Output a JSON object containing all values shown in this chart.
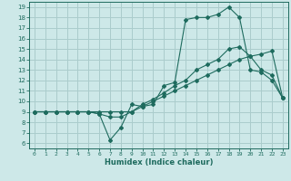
{
  "xlabel": "Humidex (Indice chaleur)",
  "bg_color": "#cde8e8",
  "grid_color": "#aacccc",
  "line_color": "#1e6b5e",
  "xlim": [
    -0.5,
    23.5
  ],
  "ylim": [
    5.5,
    19.5
  ],
  "xticks": [
    0,
    1,
    2,
    3,
    4,
    5,
    6,
    7,
    8,
    9,
    10,
    11,
    12,
    13,
    14,
    15,
    16,
    17,
    18,
    19,
    20,
    21,
    22,
    23
  ],
  "yticks": [
    6,
    7,
    8,
    9,
    10,
    11,
    12,
    13,
    14,
    15,
    16,
    17,
    18,
    19
  ],
  "line1_x": [
    0,
    1,
    2,
    3,
    4,
    5,
    6,
    7,
    8,
    9,
    10,
    11,
    12,
    13,
    14,
    15,
    16,
    17,
    18,
    19,
    20,
    21,
    22,
    23
  ],
  "line1_y": [
    9.0,
    9.0,
    9.0,
    9.0,
    9.0,
    9.0,
    8.8,
    6.3,
    7.5,
    9.7,
    9.5,
    9.7,
    11.5,
    11.8,
    17.8,
    18.0,
    18.0,
    18.3,
    19.0,
    18.0,
    13.0,
    12.8,
    12.0,
    10.3
  ],
  "line2_x": [
    0,
    1,
    2,
    3,
    4,
    5,
    6,
    7,
    8,
    9,
    10,
    11,
    12,
    13,
    14,
    15,
    16,
    17,
    18,
    19,
    20,
    21,
    22,
    23
  ],
  "line2_y": [
    9.0,
    9.0,
    9.0,
    9.0,
    9.0,
    9.0,
    8.8,
    8.5,
    8.5,
    9.0,
    9.7,
    10.2,
    10.8,
    11.5,
    12.0,
    13.0,
    13.5,
    14.0,
    15.0,
    15.2,
    14.3,
    13.0,
    12.5,
    10.3
  ],
  "line3_x": [
    0,
    1,
    2,
    3,
    4,
    5,
    6,
    7,
    8,
    9,
    10,
    11,
    12,
    13,
    14,
    15,
    16,
    17,
    18,
    19,
    20,
    21,
    22,
    23
  ],
  "line3_y": [
    9.0,
    9.0,
    9.0,
    9.0,
    9.0,
    9.0,
    9.0,
    9.0,
    9.0,
    9.0,
    9.5,
    10.0,
    10.5,
    11.0,
    11.5,
    12.0,
    12.5,
    13.0,
    13.5,
    14.0,
    14.3,
    14.5,
    14.8,
    10.3
  ]
}
